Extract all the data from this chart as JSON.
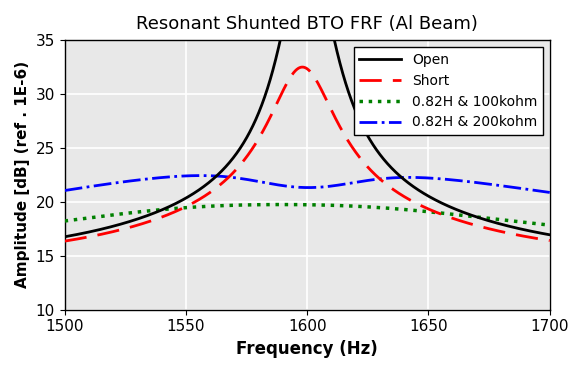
{
  "title": "Resonant Shunted BTO FRF (Al Beam)",
  "xlabel": "Frequency (Hz)",
  "ylabel": "Amplitude [dB] (ref . 1E-6)",
  "xlim": [
    1500,
    1700
  ],
  "ylim": [
    10,
    35
  ],
  "xticks": [
    1500,
    1550,
    1600,
    1650,
    1700
  ],
  "yticks": [
    10,
    15,
    20,
    25,
    30,
    35
  ],
  "resonance_freq": 1600,
  "legend_labels": [
    "Open",
    "Short",
    "0.82H & 100kohm",
    "0.82H & 200kohm"
  ],
  "line_colors": [
    "black",
    "red",
    "green",
    "blue"
  ],
  "background_color": "#e8e8e8",
  "grid_color": "white",
  "title_fontsize": 13,
  "axis_fontsize": 12,
  "tick_fontsize": 11,
  "legend_fontsize": 10
}
